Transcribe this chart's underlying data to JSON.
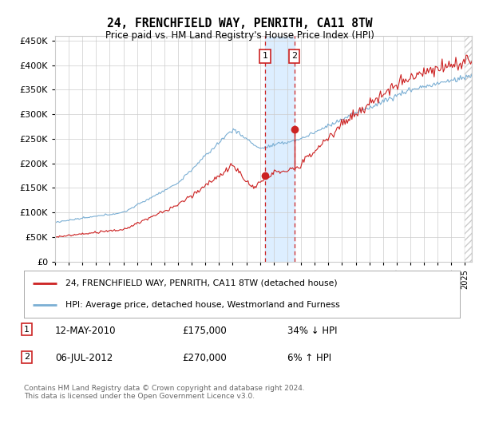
{
  "title": "24, FRENCHFIELD WAY, PENRITH, CA11 8TW",
  "subtitle": "Price paid vs. HM Land Registry's House Price Index (HPI)",
  "ylim": [
    0,
    460000
  ],
  "yticks": [
    0,
    50000,
    100000,
    150000,
    200000,
    250000,
    300000,
    350000,
    400000,
    450000
  ],
  "xlim_start": 1995.0,
  "xlim_end": 2025.5,
  "hpi_color": "#7bafd4",
  "price_color": "#cc2222",
  "transaction1_date": 2010.37,
  "transaction1_price": 175000,
  "transaction2_date": 2012.5,
  "transaction2_price": 270000,
  "legend_label1": "24, FRENCHFIELD WAY, PENRITH, CA11 8TW (detached house)",
  "legend_label2": "HPI: Average price, detached house, Westmorland and Furness",
  "table_row1_date": "12-MAY-2010",
  "table_row1_price": "£175,000",
  "table_row1_hpi": "34% ↓ HPI",
  "table_row2_date": "06-JUL-2012",
  "table_row2_price": "£270,000",
  "table_row2_hpi": "6% ↑ HPI",
  "footer": "Contains HM Land Registry data © Crown copyright and database right 2024.\nThis data is licensed under the Open Government Licence v3.0.",
  "background_color": "#ffffff",
  "grid_color": "#cccccc",
  "shade_color": "#ddeeff"
}
